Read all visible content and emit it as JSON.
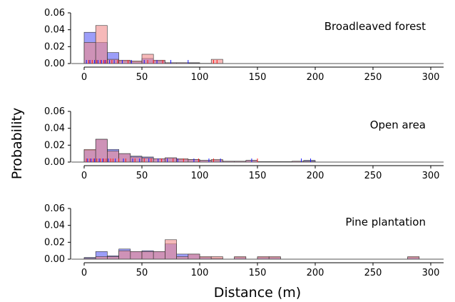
{
  "figure": {
    "ylabel": "Probability",
    "xlabel": "Distance (m)"
  },
  "chart_data": [
    {
      "type": "histogram",
      "panel_label": "Broadleaved forest",
      "x_ticks": [
        "0",
        "50",
        "100",
        "150",
        "200",
        "250",
        "300"
      ],
      "y_ticks": [
        "0.00",
        "0.02",
        "0.04",
        "0.06"
      ],
      "xlim": [
        0,
        320
      ],
      "ylim": [
        0,
        0.06
      ],
      "bin_width": 10,
      "series": [
        {
          "color": "#5a5ef5",
          "bins": [
            [
              0,
              0.037
            ],
            [
              10,
              0.025
            ],
            [
              20,
              0.013
            ],
            [
              30,
              0.003
            ],
            [
              40,
              0.002
            ],
            [
              50,
              0.006
            ],
            [
              60,
              0.003
            ],
            [
              70,
              0.001
            ],
            [
              80,
              0.001
            ],
            [
              90,
              0.001
            ],
            [
              100,
              0.0003
            ]
          ]
        },
        {
          "color": "#f08a8a",
          "bins": [
            [
              0,
              0.025
            ],
            [
              10,
              0.045
            ],
            [
              20,
              0.005
            ],
            [
              30,
              0.004
            ],
            [
              40,
              0.003
            ],
            [
              50,
              0.011
            ],
            [
              60,
              0.004
            ],
            [
              70,
              0.001
            ],
            [
              80,
              0.001
            ],
            [
              90,
              0.0005
            ],
            [
              110,
              0.005
            ]
          ]
        }
      ],
      "rug": [
        {
          "color": "#1a1aff",
          "x": [
            2,
            5,
            9,
            12,
            15,
            18,
            22,
            26,
            33,
            41,
            52,
            63,
            75,
            90
          ]
        },
        {
          "color": "#ff1a1a",
          "x": [
            4,
            7,
            11,
            14,
            17,
            19,
            24,
            29,
            38,
            55,
            60,
            68,
            112,
            115
          ]
        }
      ]
    },
    {
      "type": "histogram",
      "panel_label": "Open area",
      "x_ticks": [
        "0",
        "50",
        "100",
        "150",
        "200",
        "250",
        "300"
      ],
      "y_ticks": [
        "0.00",
        "0.02",
        "0.04",
        "0.06"
      ],
      "xlim": [
        0,
        320
      ],
      "ylim": [
        0,
        0.06
      ],
      "bin_width": 10,
      "series": [
        {
          "color": "#5a5ef5",
          "bins": [
            [
              0,
              0.014
            ],
            [
              10,
              0.027
            ],
            [
              20,
              0.015
            ],
            [
              30,
              0.01
            ],
            [
              40,
              0.007
            ],
            [
              50,
              0.006
            ],
            [
              60,
              0.004
            ],
            [
              70,
              0.005
            ],
            [
              80,
              0.003
            ],
            [
              90,
              0.003
            ],
            [
              100,
              0.002
            ],
            [
              110,
              0.002
            ],
            [
              120,
              0.001
            ],
            [
              130,
              0.001
            ],
            [
              140,
              0.002
            ],
            [
              150,
              0.0005
            ],
            [
              160,
              0.0005
            ],
            [
              170,
              0.0005
            ],
            [
              180,
              0.001
            ],
            [
              190,
              0.002
            ]
          ]
        },
        {
          "color": "#f08a8a",
          "bins": [
            [
              0,
              0.015
            ],
            [
              10,
              0.027
            ],
            [
              20,
              0.013
            ],
            [
              30,
              0.01
            ],
            [
              40,
              0.006
            ],
            [
              50,
              0.005
            ],
            [
              60,
              0.004
            ],
            [
              70,
              0.005
            ],
            [
              80,
              0.004
            ],
            [
              90,
              0.003
            ],
            [
              100,
              0.002
            ],
            [
              110,
              0.003
            ],
            [
              120,
              0.001
            ],
            [
              130,
              0.001
            ],
            [
              140,
              0.002
            ],
            [
              150,
              0.0005
            ],
            [
              160,
              0.0005
            ],
            [
              170,
              0.0005
            ],
            [
              180,
              0.001
            ],
            [
              190,
              0.001
            ]
          ]
        }
      ],
      "rug": [
        {
          "color": "#1a1aff",
          "x": [
            3,
            6,
            9,
            13,
            16,
            21,
            27,
            34,
            42,
            48,
            56,
            64,
            72,
            81,
            95,
            108,
            118,
            145,
            188,
            196
          ]
        },
        {
          "color": "#ff1a1a",
          "x": [
            2,
            5,
            8,
            11,
            14,
            17,
            19,
            23,
            25,
            30,
            36,
            44,
            52,
            58,
            67,
            77,
            86,
            99,
            112,
            150
          ]
        }
      ]
    },
    {
      "type": "histogram",
      "panel_label": "Pine plantation",
      "x_ticks": [
        "0",
        "50",
        "100",
        "150",
        "200",
        "250",
        "300"
      ],
      "y_ticks": [
        "0.00",
        "0.02",
        "0.04",
        "0.06"
      ],
      "xlim": [
        0,
        320
      ],
      "ylim": [
        0,
        0.06
      ],
      "bin_width": 10,
      "series": [
        {
          "color": "#5a5ef5",
          "bins": [
            [
              0,
              0.002
            ],
            [
              10,
              0.009
            ],
            [
              20,
              0.004
            ],
            [
              30,
              0.012
            ],
            [
              40,
              0.009
            ],
            [
              50,
              0.01
            ],
            [
              60,
              0.009
            ],
            [
              70,
              0.018
            ],
            [
              80,
              0.006
            ],
            [
              90,
              0.006
            ],
            [
              100,
              0.002
            ],
            [
              110,
              0.001
            ],
            [
              130,
              0.002
            ],
            [
              150,
              0.002
            ],
            [
              160,
              0.002
            ],
            [
              280,
              0.002
            ]
          ]
        },
        {
          "color": "#f08a8a",
          "bins": [
            [
              0,
              0.001
            ],
            [
              10,
              0.003
            ],
            [
              20,
              0.003
            ],
            [
              30,
              0.01
            ],
            [
              40,
              0.009
            ],
            [
              50,
              0.009
            ],
            [
              60,
              0.009
            ],
            [
              70,
              0.023
            ],
            [
              80,
              0.003
            ],
            [
              90,
              0.006
            ],
            [
              100,
              0.003
            ],
            [
              110,
              0.003
            ],
            [
              130,
              0.003
            ],
            [
              150,
              0.003
            ],
            [
              160,
              0.003
            ],
            [
              280,
              0.003
            ]
          ]
        }
      ],
      "rug": []
    }
  ]
}
